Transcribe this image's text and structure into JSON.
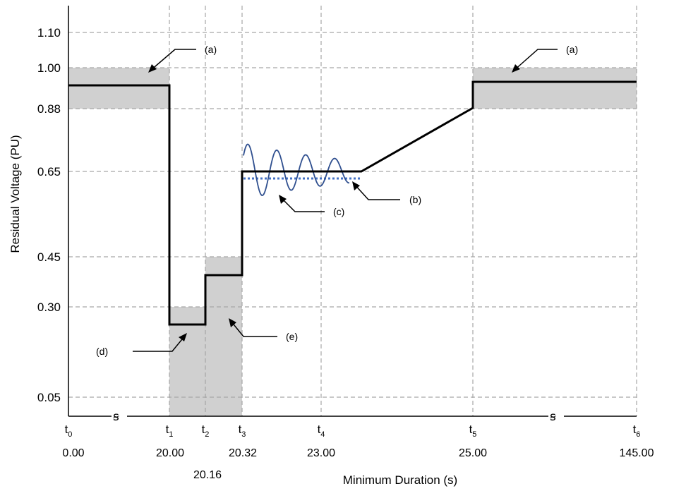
{
  "chart_data": {
    "type": "line",
    "title": "",
    "xlabel": "Minimum Duration (s)",
    "ylabel": "Residual Voltage (PU)",
    "y_ticks": [
      "1.10",
      "1.00",
      "0.88",
      "0.65",
      "0.45",
      "0.30",
      "0.05"
    ],
    "y_values": [
      1.1,
      1.0,
      0.88,
      0.65,
      0.45,
      0.3,
      0.05
    ],
    "x_ticks": [
      {
        "t": "t",
        "sub": "0",
        "value": "0.00"
      },
      {
        "t": "t",
        "sub": "1",
        "value": "20.00"
      },
      {
        "t": "t",
        "sub": "2",
        "value": "20.16"
      },
      {
        "t": "t",
        "sub": "3",
        "value": "20.32"
      },
      {
        "t": "t",
        "sub": "4",
        "value": "23.00"
      },
      {
        "t": "t",
        "sub": "5",
        "value": "25.00"
      },
      {
        "t": "t",
        "sub": "6",
        "value": "145.00"
      }
    ],
    "axis_break_symbol": "ꞩ",
    "breaks": [
      "0.00–20.00",
      "25.00–145.00"
    ],
    "series": [
      {
        "points": [
          [
            "t0",
            0.95
          ],
          [
            "t1",
            0.95
          ],
          [
            "t1",
            0.25
          ],
          [
            "t2",
            0.25
          ],
          [
            "t2",
            0.39
          ],
          [
            "t3",
            0.39
          ],
          [
            "t3",
            0.65
          ],
          [
            "t4+",
            0.65
          ],
          [
            "t5",
            0.87
          ],
          [
            "t5",
            0.95
          ],
          [
            "t6",
            0.95
          ]
        ]
      }
    ],
    "shaded_regions": [
      {
        "x": [
          "t0",
          "t1"
        ],
        "y": [
          0.88,
          1.0
        ]
      },
      {
        "x": [
          "t1",
          "t2"
        ],
        "y": [
          0.0,
          0.3
        ]
      },
      {
        "x": [
          "t2",
          "t3"
        ],
        "y": [
          0.0,
          0.45
        ]
      },
      {
        "x": [
          "t5",
          "t6"
        ],
        "y": [
          0.88,
          1.0
        ]
      }
    ],
    "annotations": [
      {
        "label": "(a)"
      },
      {
        "label": "(a)"
      },
      {
        "label": "(b)"
      },
      {
        "label": "(c)"
      },
      {
        "label": "(d)"
      },
      {
        "label": "(e)"
      }
    ],
    "grid": true,
    "legend": "none"
  }
}
